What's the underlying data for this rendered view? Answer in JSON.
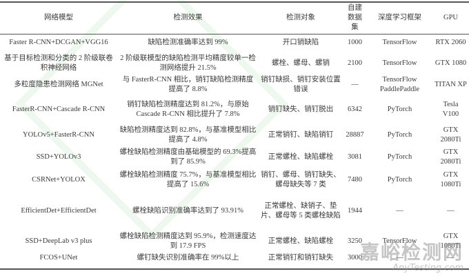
{
  "table": {
    "headers": [
      "网络模型",
      "检测效果",
      "检测对象",
      "自建数据集",
      "深度学习框架",
      "GPU"
    ],
    "rows": [
      [
        "Faster R-CNN+DCGAN+VGG16",
        "缺陷检测准确率达到 99%",
        "开口销缺陷",
        "1000",
        "TensorFlow",
        "RTX 2060"
      ],
      [
        "基于目标检测和分类的 2 阶级联卷积神经网络",
        "2 阶级联模型的缺陷检测平均精度较单一检测网络提升 21.5%",
        "螺栓、螺母、螺销",
        "2100",
        "TensorFlow",
        "GTX 1080"
      ],
      [
        "多粒度隐患检测网络 MGNet",
        "与 FasterR-CNN 相比，销钉缺陷检测精度提高了 8.8%",
        "销钉缺损、销钉安装位置错误",
        "—",
        "TensorFlow PaddlePaddle",
        "TITAN XP"
      ],
      [
        "FasterR-CNN+Cascade R-CNN",
        "销钉缺陷检测精度达到 81.2%，与原始 Cascade R-CNN 相比提升了 7.8%",
        "销钉缺失、销钉脱出",
        "6342",
        "PyTorch",
        "Tesla V100"
      ],
      [
        "YOLOv5+FasterR-CNN",
        "缺陷检测精度达到 82.8%，与基准模型相比提高了 4.8%",
        "正常销钉、缺陷销钉",
        "28887",
        "PyTorch",
        "GTX 2080Ti"
      ],
      [
        "SSD+YOLOv3",
        "螺栓缺陷检测精度由基础模型的 69.3%提高到了 85.9%",
        "正常螺栓、缺陷螺栓",
        "3081",
        "PyTorch",
        "GTX 2080Ti"
      ],
      [
        "CSRNet+YOLOX",
        "螺栓缺陷检测精度 75.7%，与基准模型相比提高了 15.6%",
        "销钉、螺母、销钉缺失、螺母缺失等 7 类",
        "7480",
        "PyTorch",
        "GTX 1080Ti"
      ],
      [
        "EfficientDet+EfficientDet",
        "螺栓缺陷识别准确率达到了 93.91%",
        "正常螺栓、缺销子、垫片、螺母等 5 类螺栓缺陷",
        "1944",
        "—",
        "—"
      ],
      [
        "SSD+DeepLab v3 plus",
        "螺栓缺陷检测精度达到 95.9%，检测速度达到 17.9 FPS",
        "正常螺栓、缺陷螺栓",
        "3250",
        "TensorFlow",
        "GTX 1080Ti"
      ],
      [
        "FCOS+UNet",
        "螺钉缺失识别准确率在 99%以上",
        "正常销钉和销钉缺失",
        "3000",
        "—",
        "—"
      ]
    ]
  },
  "watermark": {
    "cn": "嘉峪检测网",
    "en": "AnyTesting.com"
  }
}
